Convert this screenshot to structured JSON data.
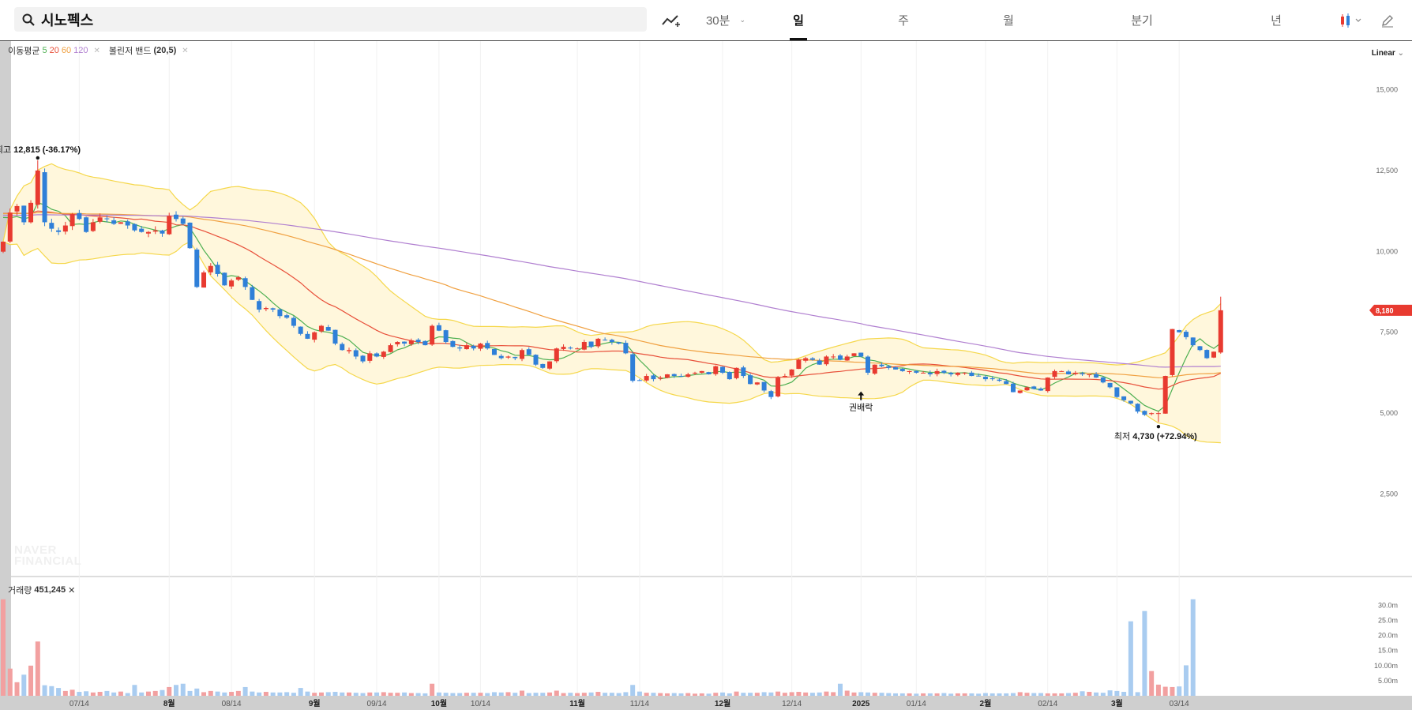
{
  "stock": {
    "name": "시노펙스"
  },
  "toolbar": {
    "tabs": [
      {
        "label": "30분",
        "active": false
      },
      {
        "label": "일",
        "active": true
      },
      {
        "label": "주",
        "active": false
      },
      {
        "label": "월",
        "active": false
      },
      {
        "label": "분기",
        "active": false
      },
      {
        "label": "년",
        "active": false
      }
    ]
  },
  "indicators": {
    "ma_label": "이동평균",
    "ma_periods": [
      "5",
      "20",
      "60",
      "120"
    ],
    "ma_colors": [
      "#4caf50",
      "#e8503a",
      "#f0a040",
      "#b07fd0"
    ],
    "bb_label": "볼린저 밴드",
    "bb_params": "(20,5)",
    "volume_label": "거래량",
    "volume_value": "451,245"
  },
  "scale_label": "Linear",
  "watermark": [
    "NAVER",
    "FINANCIAL"
  ],
  "colors": {
    "up": "#e83a30",
    "down": "#2f7fd8",
    "band_line": "#f5d74a",
    "band_fill": "#fff7dc",
    "vol_up": "#f2a0a0",
    "vol_down": "#a9ccf0"
  },
  "chart_data": {
    "type": "candlestick",
    "y_ticks": [
      "2,500",
      "5,000",
      "7,500",
      "10,000",
      "12,500",
      "15,000"
    ],
    "ylim": [
      0,
      16500
    ],
    "current_price": "8,180",
    "annotations": {
      "high": {
        "label": "최고",
        "value": "12,815",
        "pct": "(-36.17%)"
      },
      "low": {
        "label": "최저",
        "value": "4,730",
        "pct": "(+72.94%)"
      },
      "event": "권배락"
    },
    "x_labels": [
      {
        "label": "07/14",
        "i": 11,
        "bold": false
      },
      {
        "label": "8월",
        "i": 24,
        "bold": true
      },
      {
        "label": "08/14",
        "i": 33,
        "bold": false
      },
      {
        "label": "9월",
        "i": 45,
        "bold": true
      },
      {
        "label": "09/14",
        "i": 54,
        "bold": false
      },
      {
        "label": "10월",
        "i": 63,
        "bold": true
      },
      {
        "label": "10/14",
        "i": 69,
        "bold": false
      },
      {
        "label": "11월",
        "i": 83,
        "bold": true
      },
      {
        "label": "11/14",
        "i": 92,
        "bold": false
      },
      {
        "label": "12월",
        "i": 104,
        "bold": true
      },
      {
        "label": "12/14",
        "i": 114,
        "bold": false
      },
      {
        "label": "2025",
        "i": 124,
        "bold": true
      },
      {
        "label": "01/14",
        "i": 132,
        "bold": false
      },
      {
        "label": "2월",
        "i": 142,
        "bold": true
      },
      {
        "label": "02/14",
        "i": 151,
        "bold": false
      },
      {
        "label": "3월",
        "i": 161,
        "bold": true
      },
      {
        "label": "03/14",
        "i": 170,
        "bold": false
      }
    ],
    "closes": [
      10300,
      11200,
      11400,
      10900,
      11500,
      12500,
      10900,
      10700,
      10600,
      10800,
      11150,
      11000,
      10600,
      10900,
      11050,
      11000,
      10850,
      10900,
      10800,
      10650,
      10600,
      10600,
      10650,
      10550,
      11100,
      11000,
      10850,
      10100,
      8900,
      9350,
      9550,
      9300,
      8950,
      9100,
      9200,
      8900,
      8500,
      8200,
      8250,
      8200,
      8000,
      7950,
      7700,
      7450,
      7300,
      7500,
      7700,
      7550,
      7150,
      6950,
      6950,
      6750,
      6600,
      6850,
      6750,
      6900,
      7100,
      7200,
      7150,
      7250,
      7200,
      7100,
      7700,
      7550,
      7200,
      7050,
      7000,
      7100,
      7000,
      7150,
      7000,
      6800,
      6700,
      6750,
      6700,
      6950,
      6800,
      6500,
      6400,
      6600,
      7000,
      7050,
      7000,
      7000,
      7200,
      7050,
      7300,
      7250,
      7200,
      7150,
      6850,
      6000,
      6000,
      6150,
      6050,
      6100,
      6200,
      6150,
      6150,
      6200,
      6250,
      6300,
      6200,
      6450,
      6250,
      6050,
      6400,
      6150,
      5900,
      5950,
      5700,
      5500,
      6100,
      6150,
      6350,
      6650,
      6700,
      6650,
      6500,
      6750,
      6750,
      6650,
      6750,
      6850,
      6750,
      6250,
      6500,
      6450,
      6400,
      6350,
      6300,
      6300,
      6250,
      6250,
      6200,
      6300,
      6250,
      6200,
      6250,
      6250,
      6150,
      6150,
      6050,
      6050,
      6000,
      5900,
      5650,
      5700,
      5800,
      5750,
      5700,
      6100,
      6300,
      6300,
      6200,
      6250,
      6200,
      6200,
      6100,
      5950,
      5800,
      5500,
      5400,
      5300,
      5050,
      4950,
      5000,
      5000,
      6150,
      7600,
      7500,
      7350,
      7100,
      6950,
      6700,
      6900,
      8180
    ],
    "volumes_m": [
      32,
      9,
      4.5,
      7,
      10,
      18,
      3.5,
      3.2,
      2.6,
      1.6,
      2,
      1.3,
      1.5,
      1.1,
      1.3,
      1.6,
      1.1,
      1.4,
      0.9,
      3.6,
      1.1,
      1.4,
      1.6,
      1.9,
      2.9,
      3.6,
      4,
      1.6,
      2.4,
      1.2,
      1.6,
      1.4,
      1.1,
      1.3,
      1.6,
      2.9,
      1.4,
      1.1,
      1.3,
      1.1,
      1.1,
      1.2,
      1,
      2.6,
      1.4,
      1,
      1.1,
      1.2,
      1.3,
      1.1,
      1.1,
      1,
      0.9,
      1.1,
      1.1,
      1.2,
      1,
      1,
      1.1,
      0.9,
      0.9,
      0.8,
      4,
      1.1,
      1,
      0.9,
      0.9,
      1,
      1,
      1,
      0.9,
      1.2,
      1.1,
      1.2,
      1,
      1.7,
      0.9,
      1,
      1,
      1.1,
      1.7,
      0.9,
      1,
      0.9,
      1,
      1.1,
      1.3,
      1,
      1,
      0.9,
      1.2,
      3.6,
      1.4,
      1,
      1,
      0.9,
      0.8,
      0.9,
      0.8,
      0.9,
      0.7,
      0.8,
      0.7,
      1,
      1.1,
      0.8,
      1.4,
      1,
      1,
      1,
      1.2,
      1.1,
      1.4,
      1,
      1.2,
      1.3,
      1.1,
      1,
      1.1,
      1.4,
      1.2,
      4,
      1.7,
      1.1,
      1.2,
      1.1,
      1,
      1,
      0.9,
      0.8,
      0.8,
      0.8,
      0.7,
      0.8,
      0.8,
      0.8,
      0.9,
      0.7,
      0.8,
      0.8,
      0.8,
      0.7,
      0.9,
      0.8,
      0.8,
      0.8,
      0.9,
      1.2,
      1,
      0.9,
      0.9,
      0.8,
      0.8,
      0.8,
      0.9,
      1,
      1.5,
      1.3,
      1.1,
      1,
      1.8,
      1.6,
      1.3,
      24.7,
      1.2,
      28.1,
      8.2,
      3.7,
      3,
      2.9,
      3.1,
      10.1,
      32
    ],
    "vol_ticks": [
      "5.00m",
      "10.00m",
      "15.0m",
      "20.0m",
      "25.0m",
      "30.0m"
    ]
  }
}
